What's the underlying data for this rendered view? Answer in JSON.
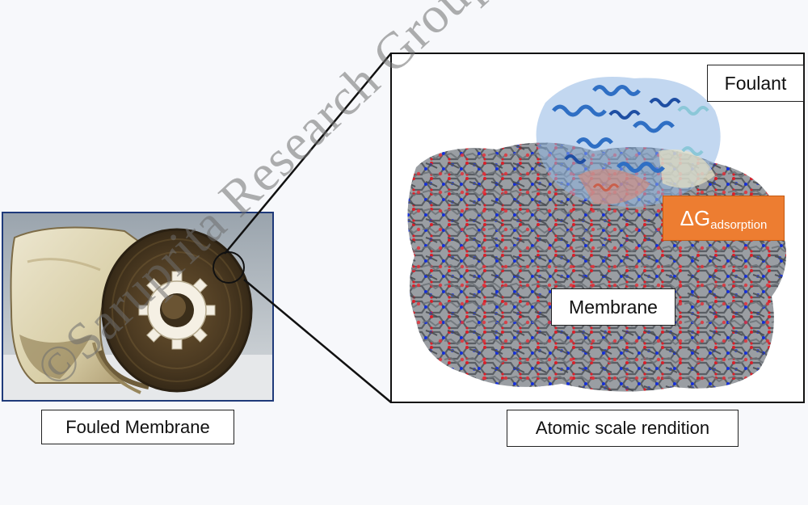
{
  "captions": {
    "photo": "Fouled Membrane",
    "rendition": "Atomic scale rendition"
  },
  "labels": {
    "foulant": "Foulant",
    "membrane": "Membrane",
    "delta_g_main": "ΔG",
    "delta_g_sub": "adsorption"
  },
  "watermark": "©Saruprita Research Group",
  "colors": {
    "delta_g_box": "#ed7d31",
    "frame": "#111111",
    "photo_frame": "#1f3a7a",
    "membrane_carbon": "#555a60",
    "membrane_oxygen": "#d9202a",
    "membrane_nitrogen": "#1630d8",
    "foulant_protein": "#3a7cc9"
  },
  "icons": {
    "photo": "fouled-membrane-photo",
    "rendition": "molecular-structure-rendering"
  }
}
